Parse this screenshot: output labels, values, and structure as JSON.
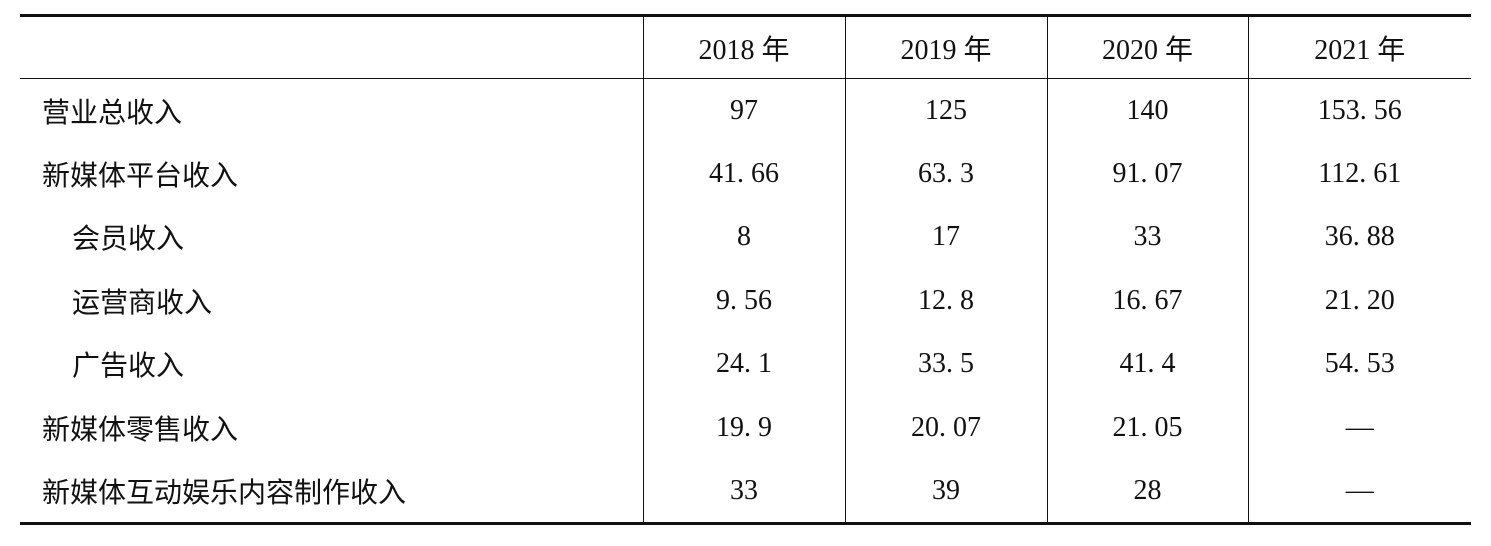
{
  "table": {
    "header": [
      "2018 年",
      "2019 年",
      "2020 年",
      "2021 年"
    ],
    "rows": [
      [
        "营业总收入",
        "97",
        "125",
        "140",
        "153. 56"
      ],
      [
        "新媒体平台收入",
        "41. 66",
        "63. 3",
        "91. 07",
        "112. 61"
      ],
      [
        "会员收入",
        "8",
        "17",
        "33",
        "36. 88"
      ],
      [
        "运营商收入",
        "9. 56",
        "12. 8",
        "16. 67",
        "21. 20"
      ],
      [
        "广告收入",
        "24. 1",
        "33. 5",
        "41. 4",
        "54. 53"
      ],
      [
        "新媒体零售收入",
        "19. 9",
        "20. 07",
        "21. 05",
        "—"
      ],
      [
        "新媒体互动娱乐内容制作收入",
        "33",
        "39",
        "28",
        "—"
      ]
    ]
  }
}
